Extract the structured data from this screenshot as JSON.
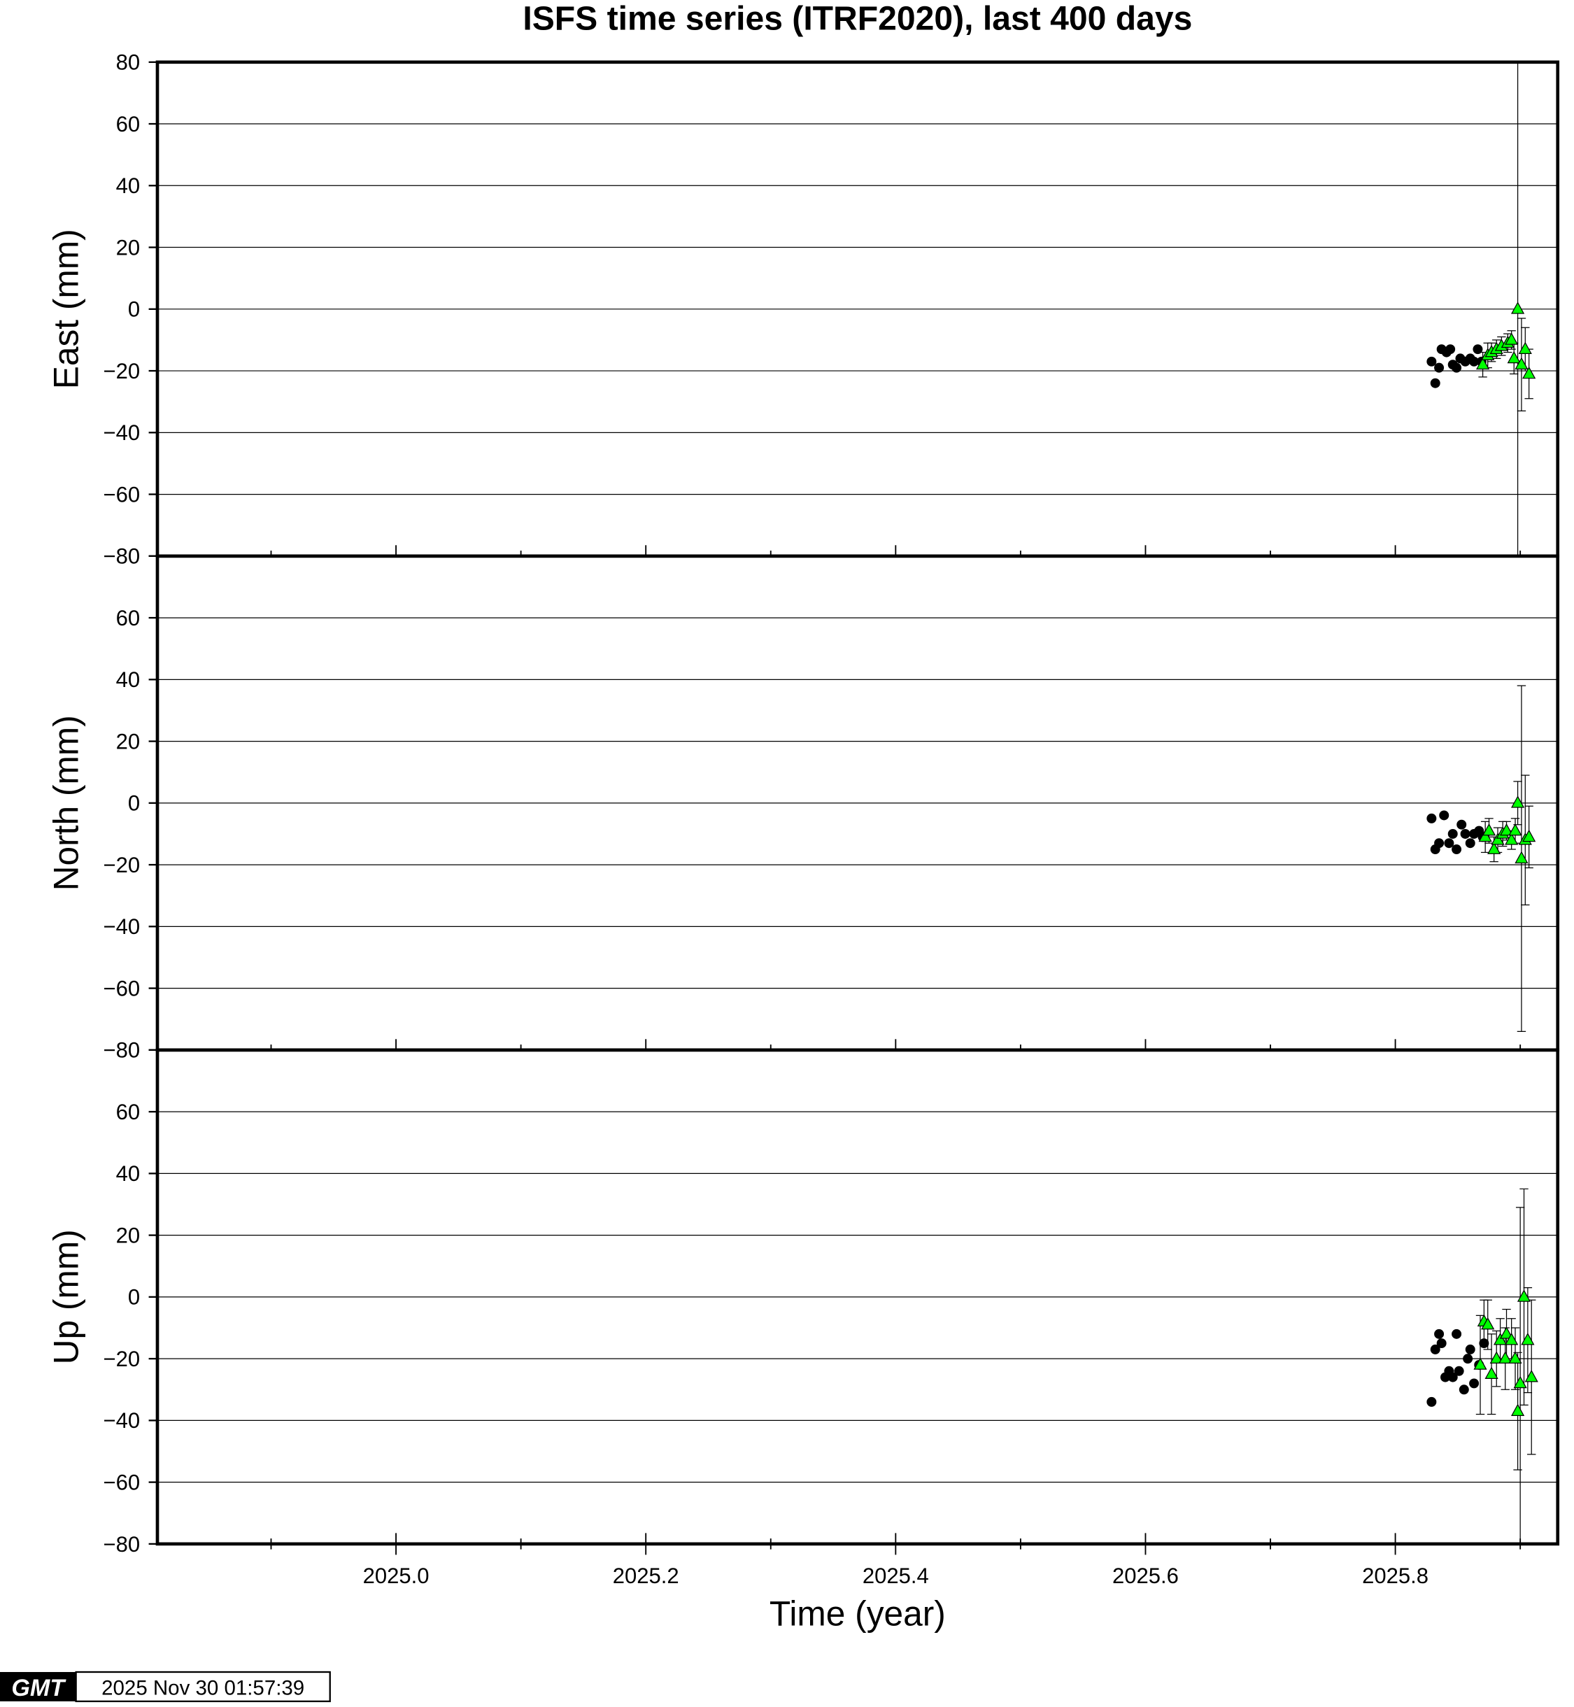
{
  "chart_data": {
    "type": "scatter",
    "title": "ISFS time series (ITRF2020), last 400 days",
    "xlabel": "Time (year)",
    "xlim": [
      2024.809,
      2025.93
    ],
    "xticks": [
      "2025.0",
      "2025.2",
      "2025.4",
      "2025.6",
      "2025.8"
    ],
    "xtick_values": [
      2025.0,
      2025.2,
      2025.4,
      2025.6,
      2025.8
    ],
    "ylim": [
      -80,
      80
    ],
    "yticks": [
      "80",
      "60",
      "40",
      "20",
      "0",
      "−20",
      "−40",
      "−60",
      "−80"
    ],
    "ytick_values": [
      80,
      60,
      40,
      20,
      0,
      -20,
      -40,
      -60,
      -80
    ],
    "grid": true,
    "colors": {
      "final": "#000000",
      "rapid": "#00ff00"
    },
    "panels": [
      {
        "ylabel": "East (mm)",
        "final": [
          [
            2025.829,
            -17
          ],
          [
            2025.832,
            -24
          ],
          [
            2025.835,
            -19
          ],
          [
            2025.837,
            -13
          ],
          [
            2025.841,
            -14
          ],
          [
            2025.844,
            -13
          ],
          [
            2025.846,
            -18
          ],
          [
            2025.849,
            -19
          ],
          [
            2025.852,
            -16
          ],
          [
            2025.856,
            -17
          ],
          [
            2025.86,
            -16
          ],
          [
            2025.863,
            -17
          ],
          [
            2025.866,
            -13
          ],
          [
            2025.869,
            -17
          ]
        ],
        "rapid": [
          [
            2025.87,
            -18,
            4
          ],
          [
            2025.874,
            -15,
            4
          ],
          [
            2025.877,
            -14,
            3
          ],
          [
            2025.881,
            -13,
            3
          ],
          [
            2025.885,
            -12,
            3
          ],
          [
            2025.89,
            -11,
            3
          ],
          [
            2025.893,
            -10,
            3
          ],
          [
            2025.895,
            -16,
            5
          ],
          [
            2025.898,
            0,
            80
          ],
          [
            2025.901,
            -18,
            15
          ],
          [
            2025.904,
            -13,
            7
          ],
          [
            2025.907,
            -21,
            8
          ]
        ]
      },
      {
        "ylabel": "North (mm)",
        "final": [
          [
            2025.829,
            -5
          ],
          [
            2025.832,
            -15
          ],
          [
            2025.835,
            -13
          ],
          [
            2025.839,
            -4
          ],
          [
            2025.843,
            -13
          ],
          [
            2025.846,
            -10
          ],
          [
            2025.849,
            -15
          ],
          [
            2025.853,
            -7
          ],
          [
            2025.856,
            -10
          ],
          [
            2025.86,
            -13
          ],
          [
            2025.863,
            -10
          ],
          [
            2025.867,
            -9
          ],
          [
            2025.87,
            -11
          ]
        ],
        "rapid": [
          [
            2025.872,
            -11,
            5
          ],
          [
            2025.875,
            -9,
            4
          ],
          [
            2025.879,
            -15,
            4
          ],
          [
            2025.882,
            -12,
            4
          ],
          [
            2025.886,
            -10,
            4
          ],
          [
            2025.889,
            -9,
            3
          ],
          [
            2025.893,
            -12,
            3
          ],
          [
            2025.896,
            -9,
            4
          ],
          [
            2025.898,
            0,
            7
          ],
          [
            2025.901,
            -18,
            56
          ],
          [
            2025.904,
            -12,
            21
          ],
          [
            2025.907,
            -11,
            10
          ]
        ]
      },
      {
        "ylabel": "Up (mm)",
        "final": [
          [
            2025.829,
            -34
          ],
          [
            2025.832,
            -17
          ],
          [
            2025.835,
            -12
          ],
          [
            2025.837,
            -15
          ],
          [
            2025.84,
            -26
          ],
          [
            2025.843,
            -24
          ],
          [
            2025.846,
            -26
          ],
          [
            2025.849,
            -12
          ],
          [
            2025.851,
            -24
          ],
          [
            2025.855,
            -30
          ],
          [
            2025.858,
            -20
          ],
          [
            2025.86,
            -17
          ],
          [
            2025.863,
            -28
          ],
          [
            2025.867,
            -22
          ],
          [
            2025.871,
            -15
          ]
        ],
        "rapid": [
          [
            2025.868,
            -22,
            16
          ],
          [
            2025.871,
            -8,
            7
          ],
          [
            2025.874,
            -9,
            8
          ],
          [
            2025.877,
            -25,
            13
          ],
          [
            2025.881,
            -20,
            9
          ],
          [
            2025.884,
            -14,
            7
          ],
          [
            2025.888,
            -20,
            10
          ],
          [
            2025.889,
            -12,
            8
          ],
          [
            2025.893,
            -14,
            7
          ],
          [
            2025.896,
            -20,
            10
          ],
          [
            2025.898,
            -37,
            19
          ],
          [
            2025.9,
            -28,
            57
          ],
          [
            2025.903,
            0,
            35
          ],
          [
            2025.906,
            -14,
            17
          ],
          [
            2025.909,
            -26,
            25
          ]
        ]
      }
    ]
  },
  "footer": {
    "logo": "GMT",
    "timestamp": "2025 Nov 30 01:57:39"
  }
}
